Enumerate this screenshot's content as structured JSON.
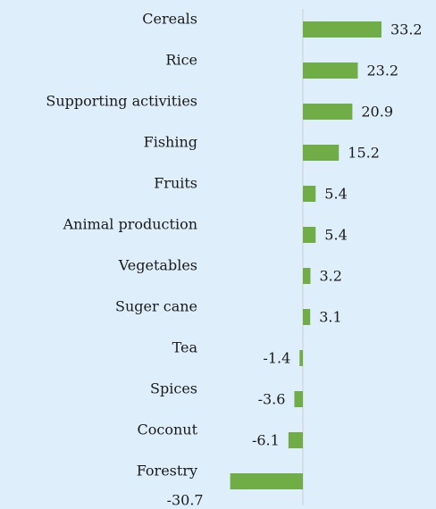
{
  "chart_data": {
    "type": "bar",
    "orientation": "horizontal",
    "categories": [
      "Cereals",
      "Rice",
      "Supporting activities",
      "Fishing",
      "Fruits",
      "Animal production",
      "Vegetables",
      "Suger cane",
      "Tea",
      "Spices",
      "Coconut",
      "Forestry"
    ],
    "values": [
      33.2,
      23.2,
      20.9,
      15.2,
      5.4,
      5.4,
      3.2,
      3.1,
      -1.4,
      -3.6,
      -6.1,
      -30.7
    ],
    "color": "#70ad47",
    "xlim": [
      -31.5,
      40
    ]
  }
}
